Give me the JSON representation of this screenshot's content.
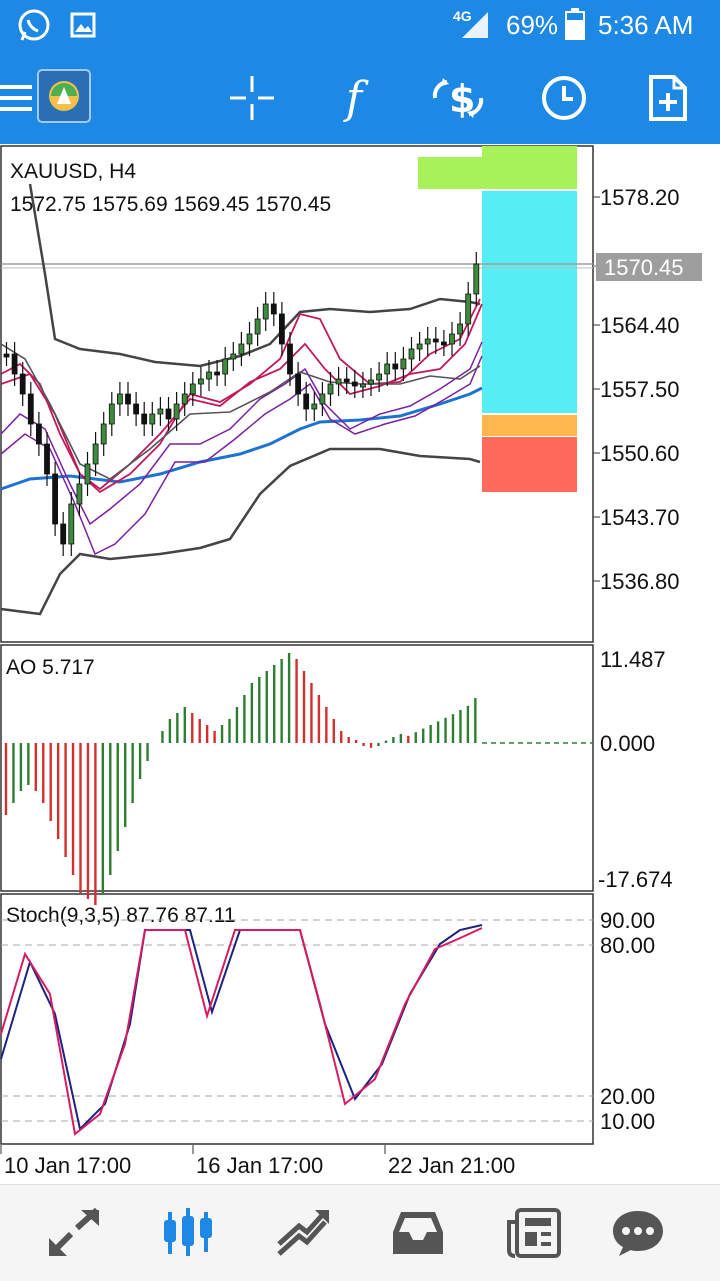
{
  "status_bar": {
    "network": "4G",
    "battery": "69%",
    "time": "5:36 AM"
  },
  "toolbar": {
    "icons": [
      "menu-icon",
      "app-logo",
      "crosshair-icon",
      "indicators-icon",
      "symbols-icon",
      "timeframe-icon",
      "new-order-icon"
    ]
  },
  "main_chart": {
    "symbol_tf": "XAUUSD, H4",
    "ohlc": "1572.75 1575.69 1569.45 1570.45",
    "price_labels": [
      "1578.20",
      "1564.40",
      "1557.50",
      "1550.60",
      "1543.70",
      "1536.80"
    ],
    "current_price": "1570.45"
  },
  "ao_panel": {
    "title": "AO 5.717",
    "labels": [
      "11.487",
      "0.000",
      "-17.674"
    ]
  },
  "stoch_panel": {
    "title": "Stoch(9,3,5) 87.76 87.11",
    "labels": [
      "90.00",
      "80.00",
      "20.00",
      "10.00"
    ]
  },
  "time_axis": [
    "10 Jan 17:00",
    "16 Jan 17:00",
    "22 Jan 21:00"
  ],
  "bottom_nav": [
    "quotes-icon",
    "chart-icon",
    "trade-icon",
    "history-icon",
    "news-icon",
    "messages-icon"
  ],
  "colors": {
    "brand": "#1e88e5",
    "bull": "#3d8b3d",
    "bear": "#d32f2f",
    "ma": "#c2185b",
    "ema": "#1e73d2"
  }
}
